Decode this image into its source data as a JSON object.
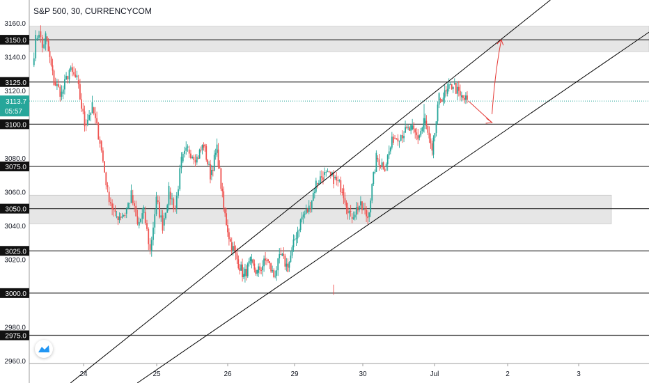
{
  "header": {
    "title": "S&P 500, 30, CURRENCYCOM"
  },
  "price_axis": {
    "ticks": [
      "3160.0",
      "3140.0",
      "3120.0",
      "3080.0",
      "3060.0",
      "3040.0",
      "3020.0",
      "2980.0",
      "2960.0"
    ],
    "level_labels": [
      "3150.0",
      "3125.0",
      "3100.0",
      "3075.0",
      "3050.0",
      "3025.0",
      "3000.0",
      "2975.0"
    ],
    "current_price": "3113.7",
    "countdown": "05:57"
  },
  "time_axis": {
    "labels": [
      "24",
      "25",
      "26",
      "29",
      "30",
      "Jul",
      "2",
      "3"
    ]
  },
  "colors": {
    "up": "#26a69a",
    "down": "#ef5350",
    "level_line": "#3c3c3c",
    "zone_fill": "#e6e6e6",
    "current_price": "#26a69a",
    "projection_arrow": "#e53935"
  },
  "chart_data": {
    "type": "candlestick",
    "symbol": "S&P 500",
    "timeframe": "30",
    "source": "CURRENCYCOM",
    "y_range": [
      2957,
      3163
    ],
    "x_categories": [
      "24",
      "25",
      "26",
      "29",
      "30",
      "Jul",
      "2",
      "3"
    ],
    "current_price": 3113.7,
    "horizontal_levels": [
      3150,
      3125,
      3100,
      3075,
      3050,
      3025,
      3000,
      2975
    ],
    "zones": [
      {
        "from": 3143,
        "to": 3158
      },
      {
        "from": 3041,
        "to": 3058
      }
    ],
    "price_path": [
      [
        "Jun 23",
        3135
      ],
      [
        "Jun 23",
        3150
      ],
      [
        "Jun 23",
        3155
      ],
      [
        "Jun 23",
        3145
      ],
      [
        "Jun 23",
        3152
      ],
      [
        "Jun 24",
        3125
      ],
      [
        "Jun 24",
        3118
      ],
      [
        "Jun 24",
        3132
      ],
      [
        "Jun 24",
        3126
      ],
      [
        "Jun 24",
        3100
      ],
      [
        "Jun 24",
        3110
      ],
      [
        "Jun 24",
        3090
      ],
      [
        "Jun 24",
        3060
      ],
      [
        "Jun 24",
        3045
      ],
      [
        "Jun 25",
        3047
      ],
      [
        "Jun 25",
        3058
      ],
      [
        "Jun 25",
        3040
      ],
      [
        "Jun 25",
        3048
      ],
      [
        "Jun 25",
        3025
      ],
      [
        "Jun 25",
        3055
      ],
      [
        "Jun 25",
        3040
      ],
      [
        "Jun 25",
        3060
      ],
      [
        "Jun 25",
        3050
      ],
      [
        "Jun 25",
        3078
      ],
      [
        "Jun 25",
        3085
      ],
      [
        "Jun 26",
        3080
      ],
      [
        "Jun 26",
        3088
      ],
      [
        "Jun 26",
        3070
      ],
      [
        "Jun 26",
        3085
      ],
      [
        "Jun 26",
        3050
      ],
      [
        "Jun 26",
        3030
      ],
      [
        "Jun 26",
        3020
      ],
      [
        "Jun 26",
        3010
      ],
      [
        "Jun 26",
        3018
      ],
      [
        "Jun 26",
        3012
      ],
      [
        "Jun 29",
        3020
      ],
      [
        "Jun 29",
        3010
      ],
      [
        "Jun 29",
        3022
      ],
      [
        "Jun 29",
        3015
      ],
      [
        "Jun 29",
        3032
      ],
      [
        "Jun 29",
        3045
      ],
      [
        "Jun 29",
        3050
      ],
      [
        "Jun 29",
        3065
      ],
      [
        "Jun 29",
        3070
      ],
      [
        "Jun 30",
        3068
      ],
      [
        "Jun 30",
        3062
      ],
      [
        "Jun 30",
        3045
      ],
      [
        "Jun 30",
        3052
      ],
      [
        "Jun 30",
        3045
      ],
      [
        "Jun 30",
        3080
      ],
      [
        "Jun 30",
        3075
      ],
      [
        "Jun 30",
        3092
      ],
      [
        "Jul 1",
        3095
      ],
      [
        "Jul 1",
        3097
      ],
      [
        "Jul 1",
        3092
      ],
      [
        "Jul 1",
        3102
      ],
      [
        "Jul 1",
        3082
      ],
      [
        "Jul 1",
        3115
      ],
      [
        "Jul 1",
        3118
      ],
      [
        "Jul 1",
        3124
      ],
      [
        "Jul 1",
        3116
      ],
      [
        "Jul 1",
        3114
      ]
    ],
    "channel": {
      "upper": {
        "from": [
          "Jun 26",
          3025
        ],
        "to": [
          "Jul 2",
          3150
        ]
      },
      "lower": {
        "from": [
          "Jun 29",
          3000
        ],
        "to": [
          "Jul 2",
          3100
        ]
      }
    },
    "projection": [
      3113.7,
      3101,
      3150
    ]
  }
}
